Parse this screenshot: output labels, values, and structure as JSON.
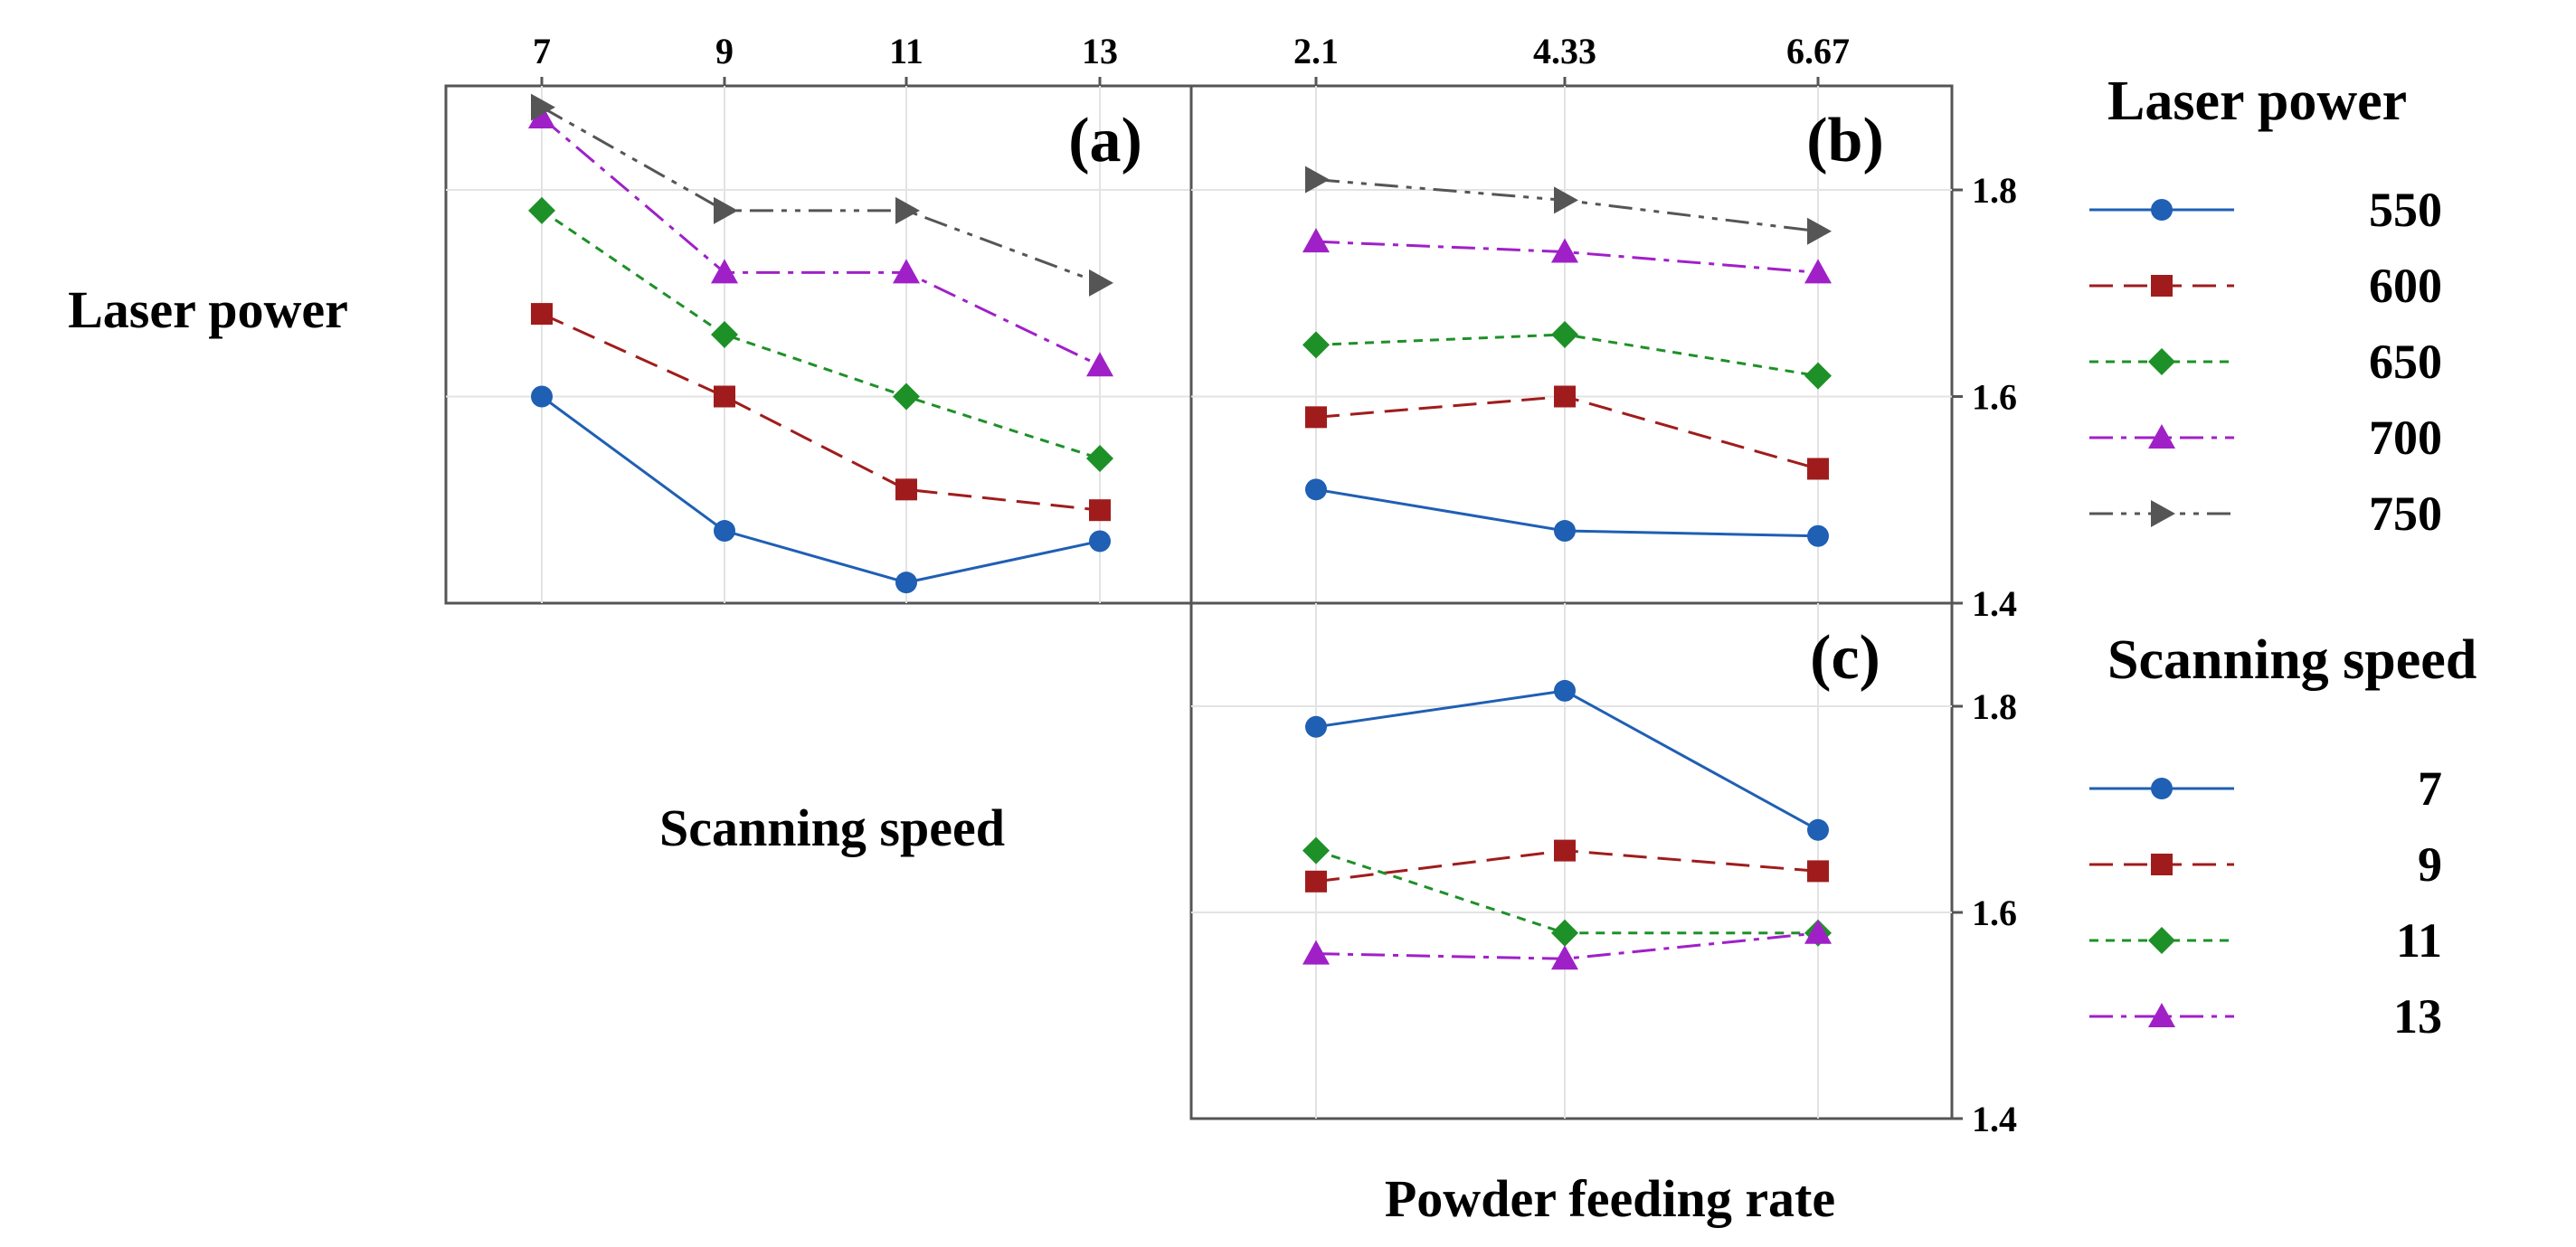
{
  "colors": {
    "axis": "#555555",
    "grid": "#e3e3e3",
    "background": "#ffffff",
    "text": "#000000"
  },
  "row_labels": {
    "laser_power": "Laser power",
    "scanning_speed": "Scanning speed",
    "powder_feeding_rate": "Powder feeding rate"
  },
  "legends": [
    {
      "title": "Laser power",
      "entries": [
        {
          "label": "550",
          "color": "#1f5fb4",
          "marker": "circle",
          "dash": "solid"
        },
        {
          "label": "600",
          "color": "#a01c1c",
          "marker": "square",
          "dash": "dash"
        },
        {
          "label": "650",
          "color": "#1e9028",
          "marker": "diamond",
          "dash": "dot"
        },
        {
          "label": "700",
          "color": "#a020c8",
          "marker": "triangle-up",
          "dash": "dashdot"
        },
        {
          "label": "750",
          "color": "#555555",
          "marker": "triangle-right",
          "dash": "dashdotdot"
        }
      ]
    },
    {
      "title": "Scanning speed",
      "entries": [
        {
          "label": "7",
          "color": "#1f5fb4",
          "marker": "circle",
          "dash": "solid"
        },
        {
          "label": "9",
          "color": "#a01c1c",
          "marker": "square",
          "dash": "dash"
        },
        {
          "label": "11",
          "color": "#1e9028",
          "marker": "diamond",
          "dash": "dot"
        },
        {
          "label": "13",
          "color": "#a020c8",
          "marker": "triangle-up",
          "dash": "dashdot"
        }
      ]
    }
  ],
  "chart_data": [
    {
      "type": "line",
      "panel_label": "(a)",
      "x": [
        7,
        9,
        11,
        13
      ],
      "x_tick_labels": [
        "7",
        "9",
        "11",
        "13"
      ],
      "xlabel": "Scanning speed",
      "ylabel": "Laser power",
      "ylim": [
        1.4,
        1.9
      ],
      "y_ticks": [
        1.4,
        1.6,
        1.8
      ],
      "series": [
        {
          "name": "550",
          "values": [
            1.6,
            1.47,
            1.42,
            1.46
          ]
        },
        {
          "name": "600",
          "values": [
            1.68,
            1.6,
            1.51,
            1.49
          ]
        },
        {
          "name": "650",
          "values": [
            1.78,
            1.66,
            1.6,
            1.54
          ]
        },
        {
          "name": "700",
          "values": [
            1.87,
            1.72,
            1.72,
            1.63
          ]
        },
        {
          "name": "750",
          "values": [
            1.88,
            1.78,
            1.78,
            1.71
          ]
        }
      ]
    },
    {
      "type": "line",
      "panel_label": "(b)",
      "x": [
        2.1,
        4.33,
        6.67
      ],
      "x_tick_labels": [
        "2.1",
        "4.33",
        "6.67"
      ],
      "xlabel": "Powder feeding rate",
      "ylabel": "Laser power",
      "ylim": [
        1.4,
        1.9
      ],
      "y_ticks": [
        1.4,
        1.6,
        1.8
      ],
      "y_tick_labels": [
        "1.4",
        "1.6",
        "1.8"
      ],
      "series": [
        {
          "name": "550",
          "values": [
            1.51,
            1.47,
            1.465
          ]
        },
        {
          "name": "600",
          "values": [
            1.58,
            1.6,
            1.53
          ]
        },
        {
          "name": "650",
          "values": [
            1.65,
            1.66,
            1.62
          ]
        },
        {
          "name": "700",
          "values": [
            1.75,
            1.74,
            1.72
          ]
        },
        {
          "name": "750",
          "values": [
            1.81,
            1.79,
            1.76
          ]
        }
      ]
    },
    {
      "type": "line",
      "panel_label": "(c)",
      "x": [
        2.1,
        4.33,
        6.67
      ],
      "xlabel": "Powder feeding rate",
      "ylabel": "Scanning speed",
      "ylim": [
        1.4,
        1.9
      ],
      "y_ticks": [
        1.4,
        1.6,
        1.8
      ],
      "y_tick_labels": [
        "1.4",
        "1.6",
        "1.8"
      ],
      "series": [
        {
          "name": "7",
          "values": [
            1.78,
            1.815,
            1.68
          ]
        },
        {
          "name": "9",
          "values": [
            1.63,
            1.66,
            1.64
          ]
        },
        {
          "name": "11",
          "values": [
            1.66,
            1.58,
            1.58
          ]
        },
        {
          "name": "13",
          "values": [
            1.56,
            1.555,
            1.58
          ]
        }
      ]
    }
  ]
}
